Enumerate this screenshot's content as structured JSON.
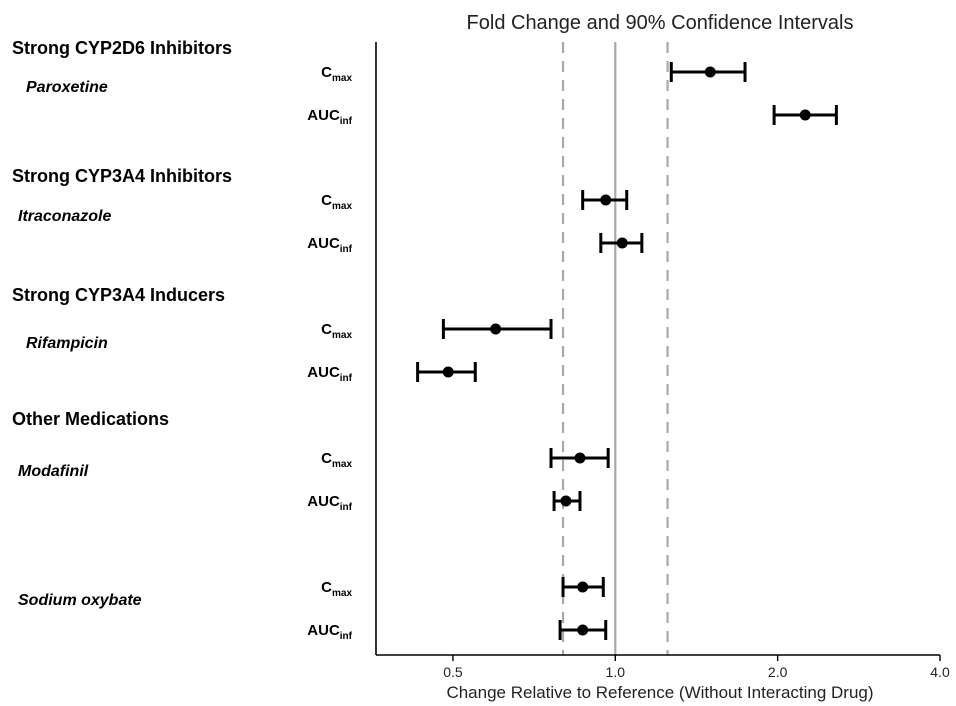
{
  "chart_data": {
    "type": "forest",
    "title": "Fold Change and 90% Confidence Intervals",
    "xlabel": "Change Relative to Reference (Without Interacting Drug)",
    "x_scale": "log2",
    "xlim": [
      0.36,
      4.0
    ],
    "x_ticks": [
      0.5,
      1.0,
      2.0,
      4.0
    ],
    "x_tick_labels": [
      "0.5",
      "1.0",
      "2.0",
      "4.0"
    ],
    "reference_line": 1.0,
    "bounds_lines": [
      0.8,
      1.25
    ],
    "groups": [
      {
        "label": "Strong CYP2D6 Inhibitors",
        "drugs": [
          {
            "name": "Paroxetine",
            "rows": [
              {
                "metric": "C",
                "sub": "max",
                "estimate": 1.5,
                "lower": 1.27,
                "upper": 1.74
              },
              {
                "metric": "AUC",
                "sub": "inf",
                "estimate": 2.25,
                "lower": 1.97,
                "upper": 2.57
              }
            ]
          }
        ]
      },
      {
        "label": "Strong CYP3A4 Inhibitors",
        "drugs": [
          {
            "name": "Itraconazole",
            "rows": [
              {
                "metric": "C",
                "sub": "max",
                "estimate": 0.96,
                "lower": 0.87,
                "upper": 1.05
              },
              {
                "metric": "AUC",
                "sub": "inf",
                "estimate": 1.03,
                "lower": 0.94,
                "upper": 1.12
              }
            ]
          }
        ]
      },
      {
        "label": "Strong CYP3A4 Inducers",
        "drugs": [
          {
            "name": "Rifampicin",
            "rows": [
              {
                "metric": "C",
                "sub": "max",
                "estimate": 0.6,
                "lower": 0.48,
                "upper": 0.76
              },
              {
                "metric": "AUC",
                "sub": "inf",
                "estimate": 0.49,
                "lower": 0.43,
                "upper": 0.55
              }
            ]
          }
        ]
      },
      {
        "label": "Other Medications",
        "drugs": [
          {
            "name": "Modafinil",
            "rows": [
              {
                "metric": "C",
                "sub": "max",
                "estimate": 0.86,
                "lower": 0.76,
                "upper": 0.97
              },
              {
                "metric": "AUC",
                "sub": "inf",
                "estimate": 0.81,
                "lower": 0.77,
                "upper": 0.86
              }
            ]
          },
          {
            "name": "Sodium oxybate",
            "rows": [
              {
                "metric": "C",
                "sub": "max",
                "estimate": 0.87,
                "lower": 0.8,
                "upper": 0.95
              },
              {
                "metric": "AUC",
                "sub": "inf",
                "estimate": 0.87,
                "lower": 0.79,
                "upper": 0.96
              }
            ]
          }
        ]
      }
    ]
  },
  "colors": {
    "marker": "#000000",
    "reference_line": "#a8a8a8",
    "bounds_lines": "#a8a8a8",
    "axis": "#000000"
  }
}
